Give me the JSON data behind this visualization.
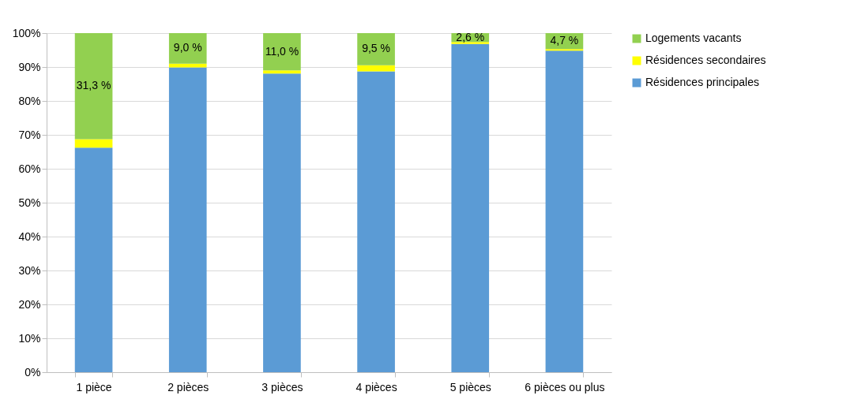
{
  "chart_data": {
    "type": "bar",
    "stacked": true,
    "categories": [
      "1 pièce",
      "2 pièces",
      "3 pièces",
      "4 pièces",
      "5 pièces",
      "6 pièces ou plus"
    ],
    "series": [
      {
        "name": "Résidences principales",
        "color": "#5b9bd5",
        "values": [
          66.2,
          89.9,
          88.1,
          88.7,
          96.8,
          94.8
        ]
      },
      {
        "name": "Résidences secondaires",
        "color": "#ffff00",
        "values": [
          2.5,
          1.1,
          0.9,
          1.8,
          0.6,
          0.5
        ]
      },
      {
        "name": "Logements vacants",
        "color": "#92d050",
        "values": [
          31.3,
          9.0,
          11.0,
          9.5,
          2.6,
          4.7
        ],
        "value_labels": [
          "31,3 %",
          "9,0 %",
          "11,0 %",
          "9,5 %",
          "2,6 %",
          "4,7 %"
        ]
      }
    ],
    "ylim": [
      0,
      100
    ],
    "yticks": [
      {
        "value": 0,
        "label": "0%"
      },
      {
        "value": 10,
        "label": "10%"
      },
      {
        "value": 20,
        "label": "20%"
      },
      {
        "value": 30,
        "label": "30%"
      },
      {
        "value": 40,
        "label": "40%"
      },
      {
        "value": 50,
        "label": "50%"
      },
      {
        "value": 60,
        "label": "60%"
      },
      {
        "value": 70,
        "label": "70%"
      },
      {
        "value": 80,
        "label": "80%"
      },
      {
        "value": 90,
        "label": "90%"
      },
      {
        "value": 100,
        "label": "100%"
      }
    ],
    "grid": "y",
    "legend": "right"
  }
}
